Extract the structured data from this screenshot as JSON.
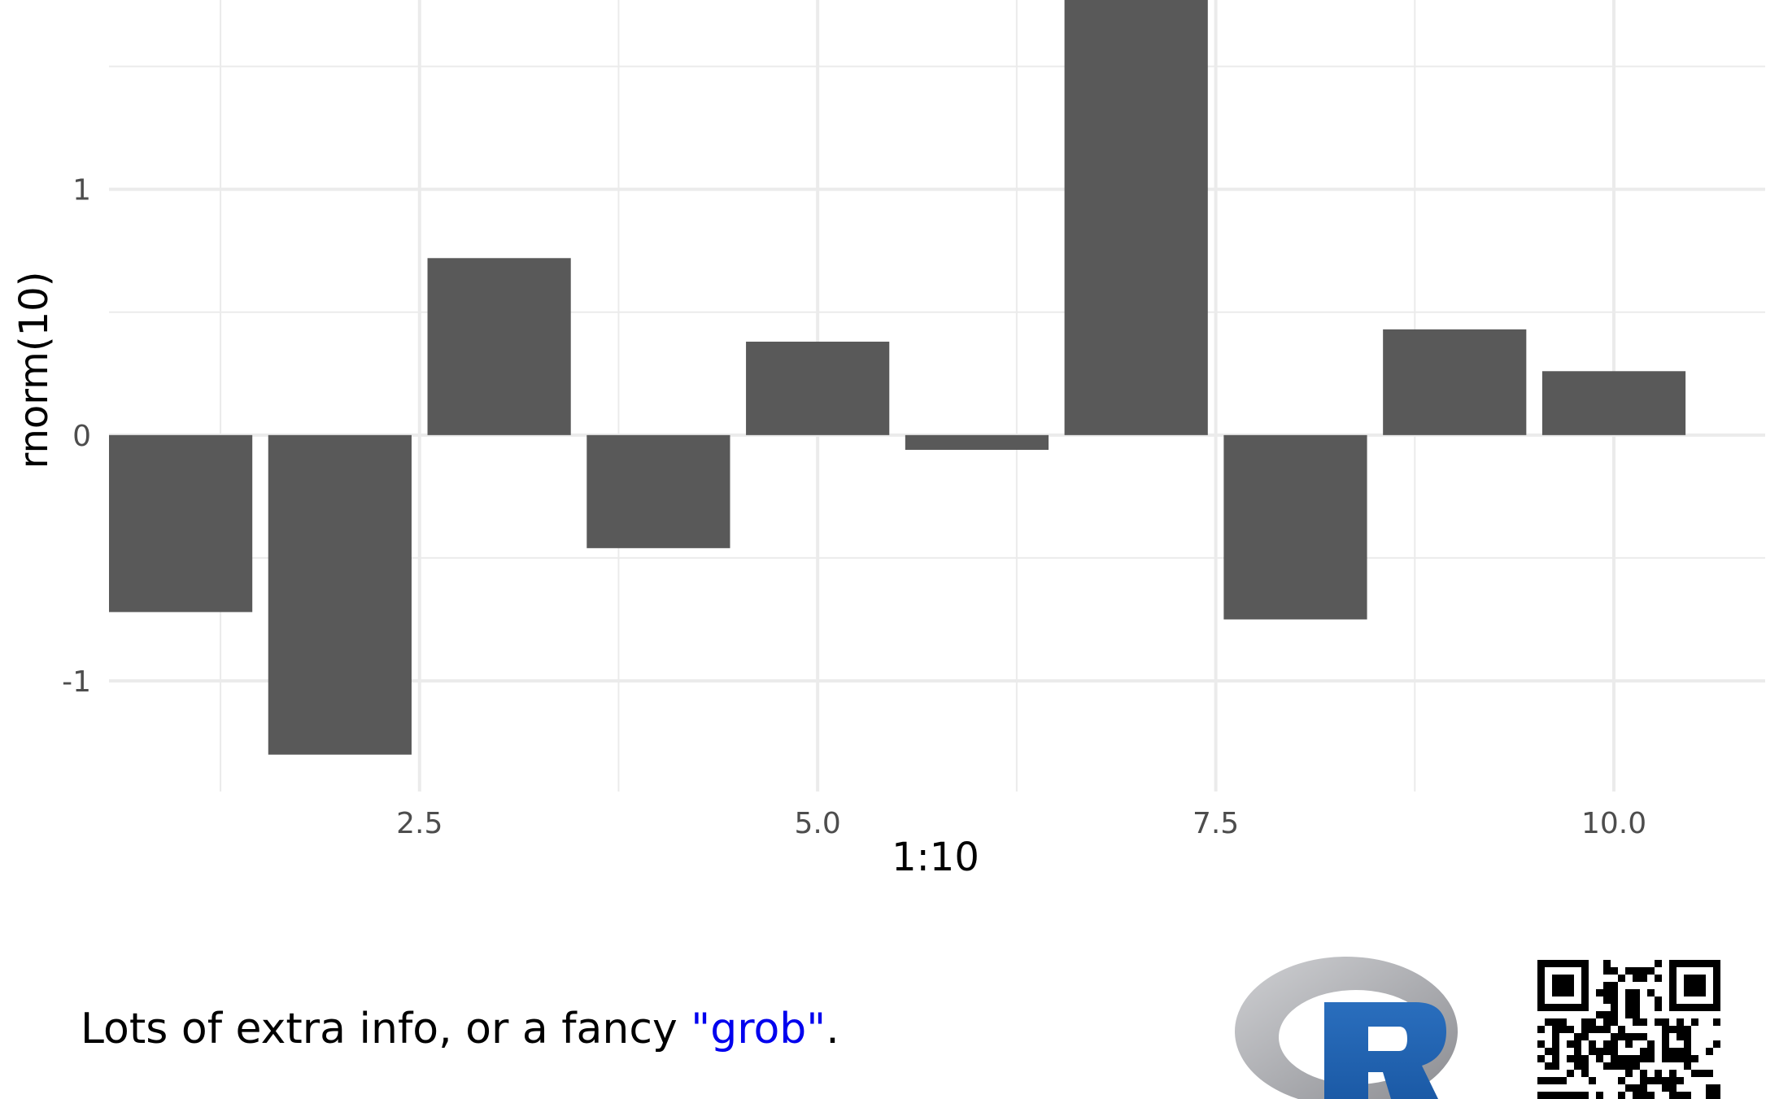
{
  "chart_data": {
    "type": "bar",
    "x": [
      1,
      2,
      3,
      4,
      5,
      6,
      7,
      8,
      9,
      10
    ],
    "values": [
      -0.72,
      -1.3,
      0.72,
      -0.46,
      0.38,
      -0.06,
      1.88,
      -0.75,
      0.43,
      0.26
    ],
    "xlabel": "1:10",
    "ylabel": "rnorm(10)",
    "x_ticks": [
      2.5,
      5.0,
      7.5,
      10.0
    ],
    "x_tick_labels": [
      "2.5",
      "5.0",
      "7.5",
      "10.0"
    ],
    "y_ticks": [
      -1,
      0,
      1
    ],
    "y_tick_labels": [
      "-1",
      "0",
      "1"
    ],
    "xlim": [
      0.55,
      10.95
    ],
    "ylim": [
      -1.45,
      1.77
    ],
    "grid": true,
    "bar_color": "#595959",
    "grid_color": "#ebebeb"
  },
  "caption": {
    "text_before": "Lots of extra info, or a fancy ",
    "highlight": "\"grob\"",
    "text_after": ".",
    "highlight_color": "#0000ee"
  },
  "logos": {
    "r_logo": "R",
    "qr_icon": "qr-code-icon"
  }
}
